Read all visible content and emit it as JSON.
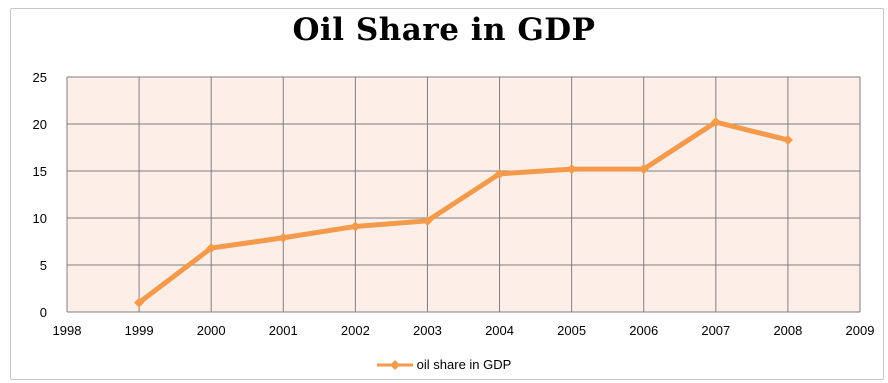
{
  "chart_data": {
    "type": "line",
    "title": "Oil Share in GDP",
    "x": [
      1999,
      2000,
      2001,
      2002,
      2003,
      2004,
      2005,
      2006,
      2007,
      2008
    ],
    "x_ticks": [
      "1998",
      "1999",
      "2000",
      "2001",
      "2002",
      "2003",
      "2004",
      "2005",
      "2006",
      "2007",
      "2008",
      "2009"
    ],
    "y_ticks": [
      "0",
      "5",
      "10",
      "15",
      "20",
      "25"
    ],
    "xlim": [
      1998,
      2009
    ],
    "ylim": [
      0,
      25
    ],
    "series": [
      {
        "name": "oil share in GDP",
        "values": [
          1.0,
          6.8,
          7.9,
          9.1,
          9.7,
          14.7,
          15.2,
          15.2,
          20.2,
          18.3
        ]
      }
    ],
    "xlabel": "",
    "ylabel": "",
    "grid": true,
    "legend_position": "bottom",
    "colors": {
      "line": "#F39A4B",
      "plot_background": "#FDEEE8",
      "grid": "#7F7F7F"
    }
  }
}
